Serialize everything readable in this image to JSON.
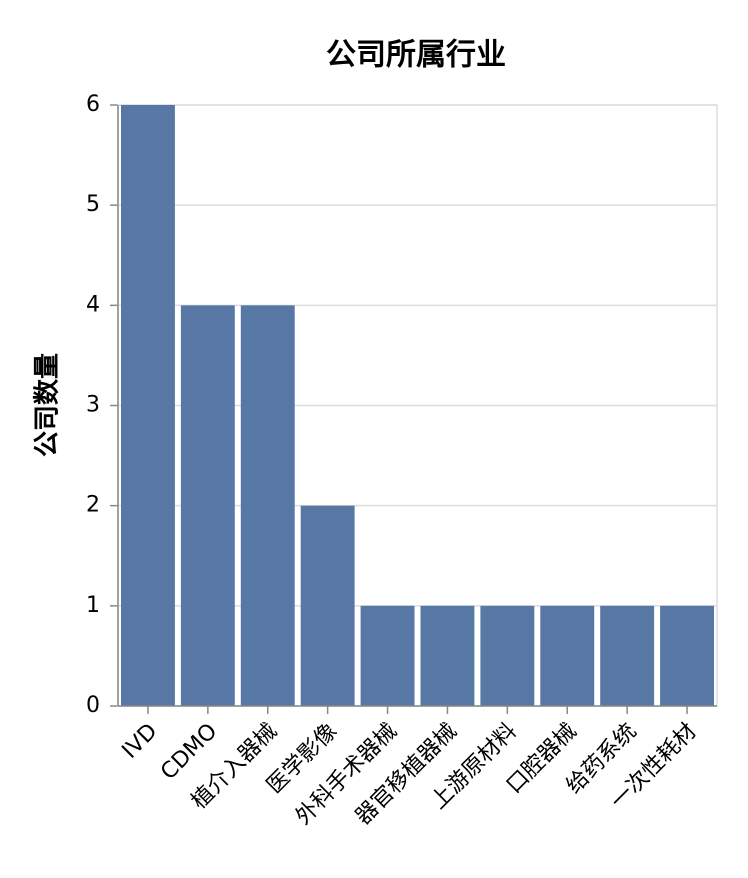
{
  "chart_data": {
    "type": "bar",
    "title": "公司所属行业",
    "y_label": "公司数量",
    "categories": [
      "IVD",
      "CDMO",
      "植介入器械",
      "医学影像",
      "外科手术器械",
      "器官移植器械",
      "上游原材料",
      "口腔器械",
      "给药系统",
      "一次性耗材"
    ],
    "values": [
      6,
      4,
      4,
      2,
      1,
      1,
      1,
      1,
      1,
      1
    ],
    "color": "#5778a4",
    "ylim": [
      0,
      6
    ],
    "yticks": [
      0,
      1,
      2,
      3,
      4,
      5,
      6
    ],
    "grid": true
  }
}
